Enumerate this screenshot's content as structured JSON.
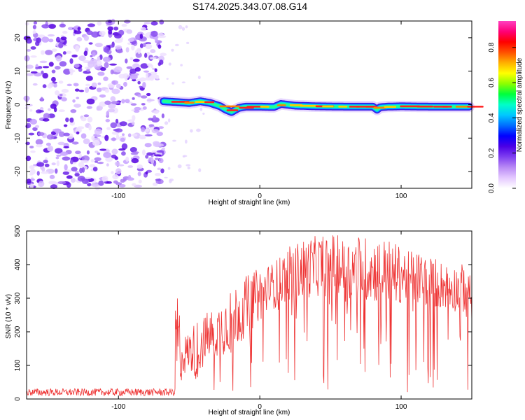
{
  "title": "S174.2025.343.07.08.G14",
  "chart_data": [
    {
      "type": "heatmap",
      "title": "S174.2025.343.07.08.G14",
      "xlabel": "Height of straight line (km)",
      "ylabel": "Frequency (Hz)",
      "xlim": [
        -165,
        150
      ],
      "ylim": [
        -25,
        25
      ],
      "xticks": [
        -100,
        0,
        100
      ],
      "yticks": [
        -20,
        -10,
        0,
        10,
        20
      ],
      "noise_region_x": [
        -165,
        -68
      ],
      "signal_start_x": -68,
      "ridge": {
        "x": [
          -68,
          -60,
          -50,
          -42,
          -35,
          -28,
          -24,
          -20,
          -15,
          -10,
          0,
          10,
          15,
          25,
          40,
          60,
          80,
          83,
          85,
          90,
          100,
          120,
          148
        ],
        "freq_hz": [
          1.0,
          0.8,
          0.5,
          1.0,
          0.5,
          -0.5,
          -1.5,
          -2.2,
          -1.0,
          -0.6,
          -0.6,
          -0.7,
          0.2,
          -0.3,
          -0.5,
          -0.6,
          -0.6,
          -1.5,
          -0.8,
          -0.6,
          -0.5,
          -0.6,
          -0.6
        ]
      },
      "colorbar": {
        "label": "Normalized spectral amplitude",
        "range": [
          0.0,
          0.95
        ],
        "ticks": [
          "0.0",
          "0.2",
          "0.4",
          "0.6",
          "0.8"
        ],
        "tick_values": [
          0.0,
          0.2,
          0.4,
          0.6,
          0.8
        ],
        "colors": [
          "#ffffff",
          "#e4c8ff",
          "#b98af5",
          "#7f3ff0",
          "#4b00e6",
          "#0000ff",
          "#006dff",
          "#00c8ff",
          "#00ffc8",
          "#00ff3c",
          "#8cff00",
          "#ffff00",
          "#ffb000",
          "#ff5000",
          "#ff0000",
          "#ff0078",
          "#ff40c0"
        ]
      }
    },
    {
      "type": "line",
      "xlabel": "Height of straight line (km)",
      "ylabel": "SNR (10 * v/v)",
      "xlim": [
        -165,
        150
      ],
      "ylim": [
        0,
        500
      ],
      "xticks": [
        -100,
        0,
        100
      ],
      "yticks": [
        0,
        100,
        200,
        300,
        400,
        500
      ],
      "color": "#ee3333",
      "baseline_x_end": -60,
      "baseline_value": 20,
      "envelope_upper": {
        "x": [
          -165,
          -62,
          -60,
          -55,
          -50,
          -45,
          -40,
          -30,
          -20,
          -10,
          0,
          10,
          20,
          30,
          40,
          50,
          60,
          70,
          80,
          90,
          100,
          110,
          120,
          130,
          140,
          150
        ],
        "y": [
          30,
          35,
          330,
          160,
          180,
          200,
          220,
          250,
          300,
          330,
          360,
          380,
          420,
          440,
          450,
          460,
          440,
          450,
          440,
          440,
          420,
          410,
          400,
          380,
          370,
          380
        ]
      },
      "envelope_center": {
        "x": [
          -165,
          -62,
          -60,
          -55,
          -50,
          -45,
          -40,
          -30,
          -20,
          -10,
          0,
          10,
          20,
          30,
          40,
          50,
          60,
          70,
          80,
          90,
          100,
          110,
          120,
          130,
          140,
          150
        ],
        "y": [
          20,
          22,
          80,
          100,
          120,
          110,
          140,
          170,
          200,
          240,
          280,
          310,
          340,
          350,
          360,
          360,
          350,
          350,
          345,
          340,
          335,
          330,
          320,
          310,
          300,
          300
        ]
      }
    }
  ]
}
